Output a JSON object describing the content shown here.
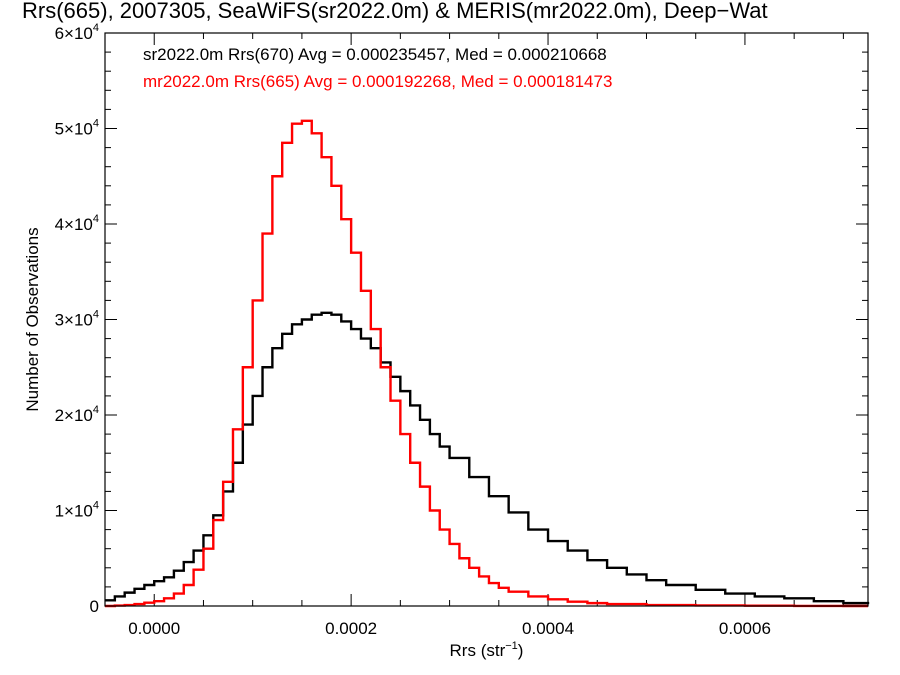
{
  "chart_data": {
    "type": "line",
    "title": "Rrs(665), 2007305, SeaWiFS(sr2022.0m) & MERIS(mr2022.0m), Deep−Wat",
    "xlabel": "Rrs (str",
    "xlabel_sup": "−1",
    "xlabel_tail": ")",
    "ylabel": "Number of Observations",
    "xlim": [
      -5e-05,
      0.000725
    ],
    "ylim": [
      0,
      60000
    ],
    "x_ticks": [
      {
        "value": 0.0,
        "label": "0.0000"
      },
      {
        "value": 0.0002,
        "label": "0.0002"
      },
      {
        "value": 0.0004,
        "label": "0.0004"
      },
      {
        "value": 0.0006,
        "label": "0.0006"
      }
    ],
    "x_minor_step": 5e-05,
    "y_ticks": [
      {
        "value": 0,
        "mant": "0",
        "exp": ""
      },
      {
        "value": 10000,
        "mant": "1×10",
        "exp": "4"
      },
      {
        "value": 20000,
        "mant": "2×10",
        "exp": "4"
      },
      {
        "value": 30000,
        "mant": "3×10",
        "exp": "4"
      },
      {
        "value": 40000,
        "mant": "4×10",
        "exp": "4"
      },
      {
        "value": 50000,
        "mant": "5×10",
        "exp": "4"
      },
      {
        "value": 60000,
        "mant": "6×10",
        "exp": "4"
      }
    ],
    "y_minor_step": 2000,
    "legend_position": "top-left",
    "series": [
      {
        "name": "sr2022.0m Rrs(670) Avg = 0.000235457, Med = 0.000210668",
        "color": "#000000",
        "style": "step",
        "x": [
          -5e-05,
          -4e-05,
          -3e-05,
          -2e-05,
          -1e-05,
          0.0,
          1e-05,
          2e-05,
          3e-05,
          4e-05,
          5e-05,
          6e-05,
          7e-05,
          8e-05,
          9e-05,
          0.0001,
          0.00011,
          0.00012,
          0.00013,
          0.00014,
          0.00015,
          0.00016,
          0.00017,
          0.00018,
          0.00019,
          0.0002,
          0.00021,
          0.00022,
          0.00023,
          0.00024,
          0.00025,
          0.00026,
          0.00027,
          0.00028,
          0.00029,
          0.0003,
          0.00032,
          0.00034,
          0.00036,
          0.00038,
          0.0004,
          0.00042,
          0.00044,
          0.00046,
          0.00048,
          0.0005,
          0.00052,
          0.00055,
          0.00058,
          0.00061,
          0.00064,
          0.00067,
          0.0007,
          0.000725
        ],
        "y": [
          600,
          1000,
          1400,
          1800,
          2200,
          2600,
          3000,
          3700,
          4600,
          5800,
          7400,
          9500,
          12000,
          15000,
          19000,
          22000,
          25000,
          27000,
          28500,
          29500,
          30000,
          30500,
          30700,
          30500,
          29800,
          29000,
          28000,
          27000,
          25500,
          24000,
          22500,
          21000,
          19500,
          18000,
          16700,
          15500,
          13500,
          11500,
          9800,
          8000,
          6800,
          5800,
          4800,
          4000,
          3300,
          2700,
          2200,
          1700,
          1300,
          1000,
          800,
          500,
          300,
          200
        ]
      },
      {
        "name": "mr2022.0m Rrs(665) Avg = 0.000192268, Med = 0.000181473",
        "color": "#ff0000",
        "style": "step",
        "x": [
          -5e-05,
          -4e-05,
          -3e-05,
          -2e-05,
          -1e-05,
          0.0,
          1e-05,
          2e-05,
          3e-05,
          4e-05,
          5e-05,
          6e-05,
          7e-05,
          8e-05,
          9e-05,
          0.0001,
          0.00011,
          0.00012,
          0.00013,
          0.00014,
          0.00015,
          0.00016,
          0.00017,
          0.00018,
          0.00019,
          0.0002,
          0.00021,
          0.00022,
          0.00023,
          0.00024,
          0.00025,
          0.00026,
          0.00027,
          0.00028,
          0.00029,
          0.0003,
          0.00031,
          0.00032,
          0.00033,
          0.00034,
          0.00035,
          0.00036,
          0.00038,
          0.0004,
          0.00042,
          0.00044,
          0.00046,
          0.0005,
          0.00055,
          0.0006,
          0.00065,
          0.0007,
          0.000725
        ],
        "y": [
          0,
          50,
          100,
          200,
          350,
          500,
          800,
          1300,
          2200,
          3800,
          6000,
          9000,
          13000,
          18500,
          25000,
          32000,
          39000,
          45000,
          48500,
          50500,
          50800,
          49500,
          47000,
          44000,
          40500,
          37000,
          33000,
          29000,
          25000,
          21500,
          18000,
          15000,
          12500,
          10000,
          8000,
          6500,
          5000,
          4000,
          3100,
          2400,
          1900,
          1500,
          1000,
          700,
          450,
          300,
          200,
          100,
          60,
          30,
          10,
          0,
          0
        ]
      }
    ]
  }
}
